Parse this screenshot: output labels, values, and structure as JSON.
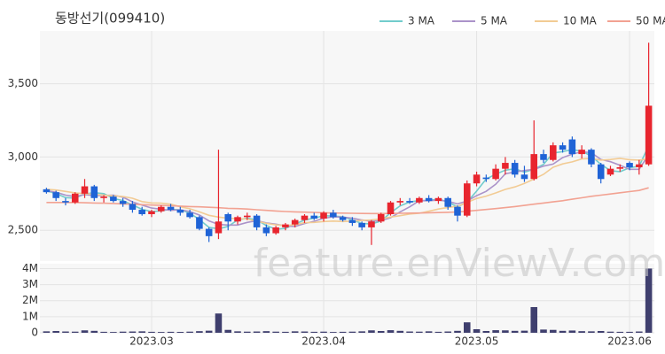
{
  "chart_data": {
    "type": "candlestick",
    "title": "동방선기(099410)",
    "watermark": "feature.enViewV.com",
    "categories": [
      null,
      null,
      null,
      null,
      null,
      null,
      null,
      null,
      null,
      null,
      null,
      "2023.03",
      null,
      null,
      null,
      null,
      null,
      null,
      null,
      null,
      null,
      null,
      null,
      null,
      null,
      null,
      null,
      null,
      null,
      "2023.04",
      null,
      null,
      null,
      null,
      null,
      null,
      null,
      null,
      null,
      null,
      null,
      null,
      null,
      null,
      null,
      "2023.05",
      null,
      null,
      null,
      null,
      null,
      null,
      null,
      null,
      null,
      null,
      null,
      null,
      null,
      null,
      null,
      "2023.06",
      null,
      null
    ],
    "open": [
      2780,
      2760,
      2700,
      2690,
      2750,
      2800,
      2720,
      2730,
      2700,
      2680,
      2640,
      2610,
      2630,
      2660,
      2640,
      2620,
      2590,
      2510,
      2480,
      2610,
      2560,
      2590,
      2600,
      2520,
      2480,
      2520,
      2540,
      2570,
      2600,
      2580,
      2620,
      2590,
      2570,
      2550,
      2520,
      2560,
      2610,
      2690,
      2700,
      2690,
      2720,
      2700,
      2720,
      2660,
      2600,
      2820,
      2860,
      2850,
      2920,
      2960,
      2880,
      2850,
      3020,
      2980,
      3080,
      3120,
      3020,
      3050,
      2950,
      2880,
      2920,
      2960,
      2930,
      2950
    ],
    "high": [
      2790,
      2770,
      2720,
      2760,
      2850,
      2810,
      2740,
      2740,
      2720,
      2700,
      2660,
      2640,
      2670,
      2680,
      2660,
      2640,
      2600,
      2520,
      3050,
      2620,
      2600,
      2620,
      2610,
      2540,
      2530,
      2550,
      2580,
      2610,
      2620,
      2630,
      2640,
      2600,
      2590,
      2560,
      2570,
      2620,
      2700,
      2720,
      2720,
      2730,
      2740,
      2730,
      2730,
      2670,
      2840,
      2900,
      2880,
      2950,
      3000,
      2980,
      2940,
      3250,
      3050,
      3100,
      3100,
      3140,
      3080,
      3060,
      2960,
      2940,
      2950,
      2970,
      2980,
      3780
    ],
    "low": [
      2750,
      2700,
      2670,
      2680,
      2720,
      2700,
      2690,
      2690,
      2660,
      2620,
      2600,
      2590,
      2620,
      2630,
      2600,
      2580,
      2500,
      2420,
      2440,
      2500,
      2540,
      2570,
      2500,
      2460,
      2470,
      2500,
      2520,
      2550,
      2570,
      2560,
      2580,
      2560,
      2530,
      2500,
      2400,
      2550,
      2600,
      2670,
      2680,
      2680,
      2690,
      2680,
      2640,
      2560,
      2590,
      2800,
      2830,
      2840,
      2880,
      2860,
      2830,
      2840,
      2960,
      2970,
      3030,
      3000,
      2990,
      2930,
      2820,
      2870,
      2900,
      2910,
      2880,
      2940
    ],
    "close": [
      2760,
      2720,
      2690,
      2750,
      2800,
      2720,
      2730,
      2700,
      2680,
      2640,
      2610,
      2630,
      2660,
      2640,
      2620,
      2590,
      2510,
      2460,
      2560,
      2560,
      2590,
      2600,
      2520,
      2480,
      2520,
      2540,
      2570,
      2600,
      2580,
      2620,
      2590,
      2570,
      2550,
      2520,
      2560,
      2610,
      2690,
      2700,
      2690,
      2720,
      2700,
      2720,
      2660,
      2600,
      2820,
      2880,
      2850,
      2920,
      2960,
      2880,
      2850,
      3020,
      2980,
      3080,
      3050,
      3020,
      3050,
      2950,
      2850,
      2920,
      2930,
      2930,
      2950,
      3350
    ],
    "up_color": "#e8252e",
    "down_color": "#1f63d6",
    "ylim": [
      2290,
      3860
    ],
    "yticks": [
      {
        "value": 2500,
        "label": "2,500"
      },
      {
        "value": 3000,
        "label": "3,000"
      },
      {
        "value": 3500,
        "label": "3,500"
      }
    ],
    "grid": true,
    "series": [
      {
        "name": "3 MA",
        "color": "#72cccc",
        "values": [
          2770,
          2750,
          2723,
          2720,
          2747,
          2757,
          2750,
          2717,
          2703,
          2673,
          2643,
          2627,
          2633,
          2643,
          2640,
          2617,
          2573,
          2520,
          2510,
          2527,
          2570,
          2583,
          2570,
          2533,
          2507,
          2513,
          2543,
          2570,
          2583,
          2600,
          2597,
          2593,
          2570,
          2547,
          2543,
          2563,
          2620,
          2667,
          2693,
          2703,
          2703,
          2713,
          2693,
          2660,
          2693,
          2767,
          2850,
          2883,
          2910,
          2920,
          2897,
          2917,
          2950,
          3027,
          3037,
          3050,
          3040,
          3007,
          2950,
          2907,
          2900,
          2927,
          2937,
          3077
        ]
      },
      {
        "name": "5 MA",
        "color": "#ab93c9",
        "values": [
          2770,
          2760,
          2740,
          2730,
          2744,
          2736,
          2738,
          2740,
          2726,
          2694,
          2672,
          2652,
          2644,
          2636,
          2640,
          2628,
          2604,
          2564,
          2540,
          2536,
          2536,
          2554,
          2566,
          2550,
          2542,
          2530,
          2526,
          2546,
          2562,
          2582,
          2592,
          2590,
          2582,
          2570,
          2562,
          2566,
          2586,
          2626,
          2660,
          2702,
          2702,
          2706,
          2698,
          2680,
          2700,
          2736,
          2766,
          2814,
          2886,
          2898,
          2908,
          2916,
          2938,
          2952,
          2996,
          3020,
          3036,
          3030,
          2984,
          2968,
          2944,
          2916,
          2916,
          3016
        ]
      },
      {
        "name": "10 MA",
        "color": "#f2cb94",
        "values": [
          2780,
          2775,
          2765,
          2755,
          2750,
          2745,
          2740,
          2735,
          2730,
          2719,
          2696,
          2687,
          2685,
          2678,
          2660,
          2647,
          2626,
          2602,
          2590,
          2582,
          2580,
          2577,
          2563,
          2547,
          2537,
          2532,
          2538,
          2552,
          2554,
          2560,
          2563,
          2560,
          2563,
          2567,
          2571,
          2578,
          2590,
          2600,
          2611,
          2616,
          2630,
          2645,
          2656,
          2664,
          2690,
          2717,
          2733,
          2755,
          2779,
          2796,
          2820,
          2850,
          2882,
          2930,
          2953,
          2967,
          2987,
          2990,
          2979,
          2983,
          2991,
          2982,
          2979,
          2988
        ]
      },
      {
        "name": "50 MA",
        "color": "#f2a292",
        "values": [
          2690,
          2690,
          2690,
          2690,
          2688,
          2686,
          2685,
          2683,
          2680,
          2678,
          2675,
          2672,
          2670,
          2668,
          2665,
          2662,
          2660,
          2657,
          2654,
          2650,
          2648,
          2645,
          2640,
          2636,
          2632,
          2628,
          2626,
          2624,
          2622,
          2620,
          2618,
          2617,
          2616,
          2615,
          2614,
          2614,
          2615,
          2616,
          2617,
          2618,
          2620,
          2621,
          2623,
          2625,
          2630,
          2636,
          2642,
          2648,
          2655,
          2662,
          2670,
          2678,
          2686,
          2694,
          2702,
          2712,
          2722,
          2732,
          2740,
          2748,
          2756,
          2764,
          2772,
          2790
        ]
      }
    ],
    "volume": {
      "color": "#3f3f6e",
      "ylim": [
        0,
        4300000
      ],
      "yticks": [
        0,
        {
          "value": 1000000,
          "label": "1M"
        },
        {
          "value": 2000000,
          "label": "2M"
        },
        {
          "value": 3000000,
          "label": "3M"
        },
        {
          "value": 4000000,
          "label": "4M"
        }
      ],
      "values": [
        90000,
        110000,
        80000,
        70000,
        150000,
        120000,
        60000,
        50000,
        70000,
        80000,
        90000,
        60000,
        50000,
        60000,
        55000,
        70000,
        100000,
        130000,
        1200000,
        180000,
        90000,
        70000,
        80000,
        100000,
        70000,
        60000,
        90000,
        80000,
        60000,
        70000,
        50000,
        60000,
        70000,
        90000,
        150000,
        110000,
        160000,
        120000,
        80000,
        70000,
        90000,
        60000,
        80000,
        120000,
        650000,
        220000,
        110000,
        160000,
        150000,
        120000,
        130000,
        1600000,
        200000,
        180000,
        120000,
        140000,
        100000,
        90000,
        110000,
        70000,
        60000,
        60000,
        80000,
        4000000
      ]
    }
  }
}
